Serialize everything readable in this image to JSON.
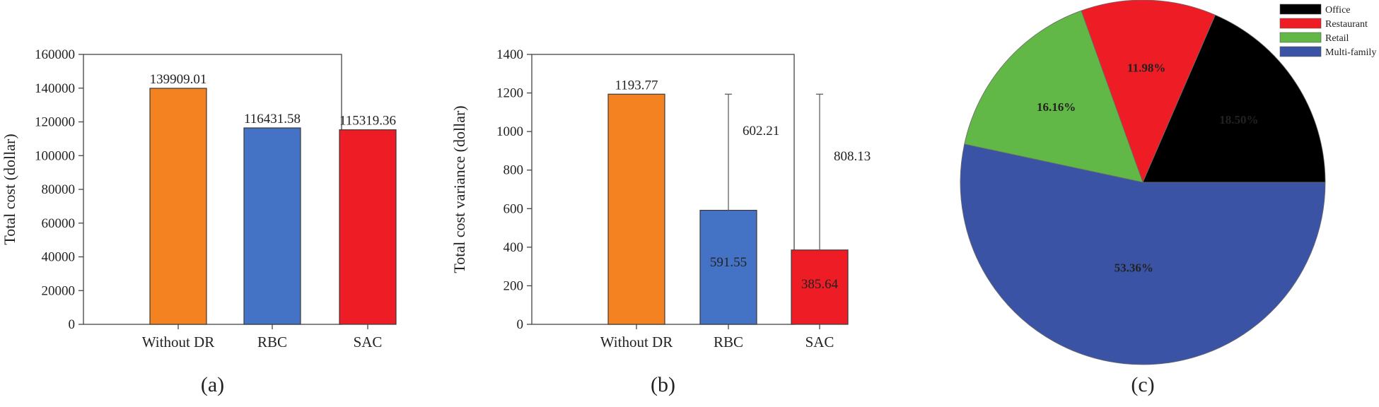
{
  "chart_data": [
    {
      "type": "bar",
      "panel_label": "(a)",
      "ylabel": "Total cost (dollar)",
      "categories": [
        "Without DR",
        "RBC",
        "SAC"
      ],
      "values": [
        139909.01,
        116431.58,
        115319.36
      ],
      "value_labels": [
        "139909.01",
        "116431.58",
        "115319.36"
      ],
      "colors": [
        "#f48220",
        "#4472c4",
        "#ee1c25"
      ],
      "ylim": [
        0,
        160000
      ],
      "yticks": [
        0,
        20000,
        40000,
        60000,
        80000,
        100000,
        120000,
        140000,
        160000
      ],
      "ytick_labels": [
        "0",
        "20000",
        "40000",
        "60000",
        "80000",
        "100000",
        "120000",
        "140000",
        "160000"
      ]
    },
    {
      "type": "bar",
      "panel_label": "(b)",
      "ylabel": "Total cost variance (dollar)",
      "categories": [
        "Without DR",
        "RBC",
        "SAC"
      ],
      "values": [
        1193.77,
        591.55,
        385.64
      ],
      "value_labels": [
        "1193.77",
        "591.55",
        "385.64"
      ],
      "colors": [
        "#f48220",
        "#4472c4",
        "#ee1c25"
      ],
      "reductions": [
        {
          "category": "RBC",
          "value": 602.21,
          "label": "602.21"
        },
        {
          "category": "SAC",
          "value": 808.13,
          "label": "808.13"
        }
      ],
      "ylim": [
        0,
        1400
      ],
      "yticks": [
        0,
        200,
        400,
        600,
        800,
        1000,
        1200,
        1400
      ],
      "ytick_labels": [
        "0",
        "200",
        "400",
        "600",
        "800",
        "1000",
        "1200",
        "1400"
      ]
    },
    {
      "type": "pie",
      "panel_label": "(c)",
      "slices": [
        {
          "name": "Office",
          "value": 18.5,
          "label": "18.50%",
          "color": "#000000",
          "label_color": "#ffffff"
        },
        {
          "name": "Restaurant",
          "value": 11.98,
          "label": "11.98%",
          "color": "#ee1c25",
          "label_color": "#1a1a1a"
        },
        {
          "name": "Retail",
          "value": 16.16,
          "label": "16.16%",
          "color": "#62b847",
          "label_color": "#0b4a2a"
        },
        {
          "name": "Multi-family",
          "value": 53.36,
          "label": "53.36%",
          "color": "#3a53a4",
          "label_color": "#dfe3f5"
        }
      ],
      "legend": [
        "Office",
        "Restaurant",
        "Retail",
        "Multi-family"
      ],
      "legend_position": "top-right"
    }
  ]
}
